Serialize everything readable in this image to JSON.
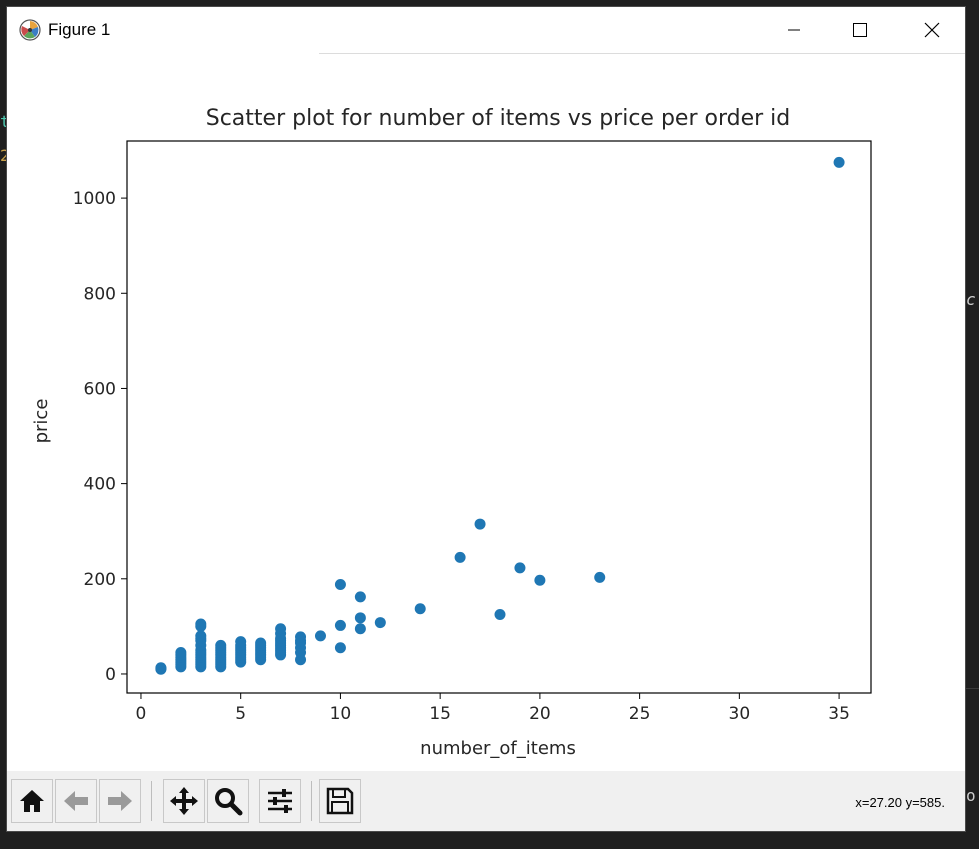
{
  "window": {
    "title": "Figure 1",
    "icons": {
      "app": "matplotlib-icon",
      "minimize": "minimize-icon",
      "maximize": "maximize-icon",
      "close": "close-icon"
    }
  },
  "chart_data": {
    "type": "scatter",
    "title": "Scatter plot for number of items vs price per order id",
    "xlabel": "number_of_items",
    "ylabel": "price",
    "xlim": [
      -0.7,
      36.6
    ],
    "ylim": [
      -40,
      1120
    ],
    "xticks": [
      0,
      5,
      10,
      15,
      20,
      25,
      30,
      35
    ],
    "yticks": [
      0,
      200,
      400,
      600,
      800,
      1000
    ],
    "grid": false,
    "marker_color": "#1f77b4",
    "points": [
      [
        1,
        10
      ],
      [
        1,
        12
      ],
      [
        1,
        13
      ],
      [
        2,
        15
      ],
      [
        2,
        20
      ],
      [
        2,
        25
      ],
      [
        2,
        30
      ],
      [
        2,
        35
      ],
      [
        2,
        40
      ],
      [
        2,
        45
      ],
      [
        3,
        15
      ],
      [
        3,
        20
      ],
      [
        3,
        25
      ],
      [
        3,
        30
      ],
      [
        3,
        35
      ],
      [
        3,
        40
      ],
      [
        3,
        45
      ],
      [
        3,
        50
      ],
      [
        3,
        60
      ],
      [
        3,
        70
      ],
      [
        3,
        75
      ],
      [
        3,
        80
      ],
      [
        3,
        100
      ],
      [
        3,
        105
      ],
      [
        4,
        15
      ],
      [
        4,
        20
      ],
      [
        4,
        25
      ],
      [
        4,
        30
      ],
      [
        4,
        35
      ],
      [
        4,
        40
      ],
      [
        4,
        45
      ],
      [
        4,
        50
      ],
      [
        4,
        55
      ],
      [
        4,
        60
      ],
      [
        5,
        25
      ],
      [
        5,
        30
      ],
      [
        5,
        35
      ],
      [
        5,
        40
      ],
      [
        5,
        45
      ],
      [
        5,
        50
      ],
      [
        5,
        55
      ],
      [
        5,
        60
      ],
      [
        5,
        68
      ],
      [
        6,
        30
      ],
      [
        6,
        35
      ],
      [
        6,
        40
      ],
      [
        6,
        45
      ],
      [
        6,
        50
      ],
      [
        6,
        55
      ],
      [
        6,
        60
      ],
      [
        6,
        65
      ],
      [
        7,
        40
      ],
      [
        7,
        45
      ],
      [
        7,
        50
      ],
      [
        7,
        55
      ],
      [
        7,
        60
      ],
      [
        7,
        65
      ],
      [
        7,
        70
      ],
      [
        7,
        75
      ],
      [
        7,
        85
      ],
      [
        7,
        95
      ],
      [
        8,
        30
      ],
      [
        8,
        45
      ],
      [
        8,
        55
      ],
      [
        8,
        65
      ],
      [
        8,
        70
      ],
      [
        8,
        78
      ],
      [
        9,
        80
      ],
      [
        10,
        55
      ],
      [
        10,
        102
      ],
      [
        10,
        188
      ],
      [
        11,
        95
      ],
      [
        11,
        118
      ],
      [
        11,
        162
      ],
      [
        12,
        108
      ],
      [
        14,
        137
      ],
      [
        16,
        245
      ],
      [
        17,
        315
      ],
      [
        18,
        125
      ],
      [
        19,
        223
      ],
      [
        20,
        197
      ],
      [
        23,
        203
      ],
      [
        35,
        1075
      ]
    ]
  },
  "toolbar": {
    "buttons": [
      {
        "name": "home-button",
        "icon": "home-icon"
      },
      {
        "name": "back-button",
        "icon": "arrow-left-icon"
      },
      {
        "name": "forward-button",
        "icon": "arrow-right-icon"
      },
      {
        "name": "pan-button",
        "icon": "move-icon"
      },
      {
        "name": "zoom-button",
        "icon": "magnifier-icon"
      },
      {
        "name": "configure-subplots-button",
        "icon": "sliders-icon"
      },
      {
        "name": "save-button",
        "icon": "floppy-disk-icon"
      }
    ],
    "coordinates": "x=27.20 y=585."
  }
}
